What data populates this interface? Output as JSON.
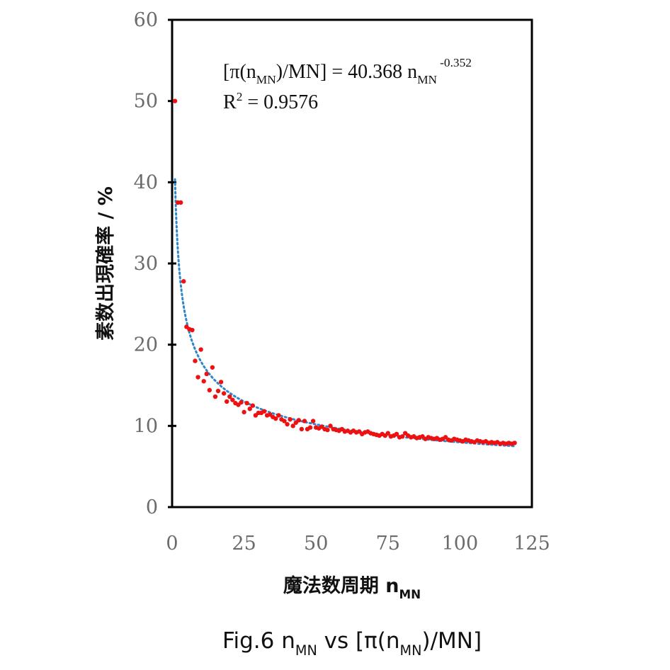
{
  "chart_data": {
    "type": "scatter",
    "title": "",
    "xlabel": {
      "main": "魔法数周期 n",
      "sub": "MN"
    },
    "ylabel": "素数出現確率 / %",
    "xlim": [
      0,
      125
    ],
    "ylim": [
      0,
      60
    ],
    "x_ticks": [
      "0",
      "25",
      "50",
      "75",
      "100",
      "125"
    ],
    "y_ticks": [
      "0",
      "10",
      "20",
      "30",
      "40",
      "50",
      "60"
    ],
    "grid": false,
    "series": [
      {
        "name": "[π(nMN)/MN]",
        "kind": "points",
        "color": "#ee1111",
        "x": [
          1,
          2,
          3,
          4,
          5,
          6,
          7,
          8,
          9,
          10,
          11,
          12,
          13,
          14,
          15,
          16,
          17,
          18,
          19,
          20,
          21,
          22,
          23,
          24,
          25,
          26,
          27,
          28,
          29,
          30,
          31,
          32,
          33,
          34,
          35,
          36,
          37,
          38,
          39,
          40,
          41,
          42,
          43,
          44,
          45,
          46,
          47,
          48,
          49,
          50,
          51,
          52,
          53,
          54,
          55,
          56,
          57,
          58,
          59,
          60,
          61,
          62,
          63,
          64,
          65,
          66,
          67,
          68,
          69,
          70,
          71,
          72,
          73,
          74,
          75,
          76,
          77,
          78,
          79,
          80,
          81,
          82,
          83,
          84,
          85,
          86,
          87,
          88,
          89,
          90,
          91,
          92,
          93,
          94,
          95,
          96,
          97,
          98,
          99,
          100,
          101,
          102,
          103,
          104,
          105,
          106,
          107,
          108,
          109,
          110,
          111,
          112,
          113,
          114,
          115,
          116,
          117,
          118,
          119
        ],
        "y": [
          50.0,
          37.5,
          37.5,
          27.8,
          22.2,
          21.9,
          21.8,
          18.0,
          16.0,
          19.4,
          15.5,
          16.4,
          14.4,
          17.2,
          13.6,
          14.3,
          15.4,
          14.0,
          13.0,
          13.6,
          13.2,
          12.8,
          12.6,
          12.9,
          11.7,
          12.8,
          12.1,
          12.5,
          11.3,
          11.6,
          11.6,
          11.8,
          11.3,
          11.4,
          11.1,
          10.9,
          11.3,
          10.8,
          10.6,
          10.2,
          10.8,
          10.0,
          10.4,
          10.7,
          9.6,
          10.6,
          9.6,
          9.8,
          10.6,
          9.8,
          9.7,
          9.9,
          9.6,
          9.5,
          10.0,
          9.6,
          9.5,
          9.4,
          9.6,
          9.3,
          9.4,
          9.2,
          9.4,
          9.2,
          9.3,
          9.0,
          9.2,
          9.3,
          9.1,
          9.0,
          8.9,
          8.8,
          9.0,
          8.8,
          9.1,
          8.7,
          8.8,
          9.0,
          8.6,
          8.7,
          9.1,
          8.8,
          8.6,
          8.7,
          8.5,
          8.6,
          8.7,
          8.4,
          8.6,
          8.5,
          8.4,
          8.5,
          8.3,
          8.4,
          8.6,
          8.3,
          8.2,
          8.4,
          8.3,
          8.2,
          8.1,
          8.3,
          8.2,
          8.1,
          8.0,
          8.2,
          8.1,
          8.0,
          8.1,
          7.9,
          8.0,
          7.9,
          8.0,
          7.8,
          7.9,
          7.8,
          7.9,
          7.8,
          7.9
        ]
      },
      {
        "name": "Power trendline",
        "kind": "trendline",
        "color": "#2f86c9",
        "coefficient": 40.368,
        "exponent": -0.352,
        "x_range": [
          1,
          119
        ]
      }
    ],
    "annotation": {
      "eq_lead": "[π(n",
      "eq_sub": "MN",
      "eq_mid": ")/MN] = 40.368 n",
      "eq_sub2": "MN",
      "eq_exp": "-0.352",
      "r2_lead": "R",
      "r2_sup": "2",
      "r2_tail": " = 0.9576"
    }
  },
  "caption": {
    "part1": "Fig.6 n",
    "sub1": "MN",
    "part2": " vs [π(n",
    "sub2": "MN",
    "part3": ")/MN]"
  }
}
